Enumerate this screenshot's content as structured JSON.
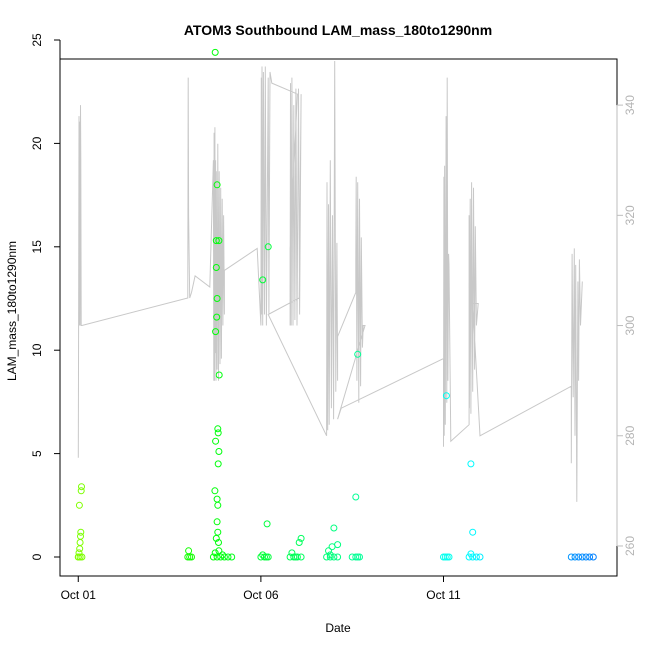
{
  "chart_data": {
    "type": "scatter",
    "title": "ATOM3 Southbound LAM_mass_180to1290nm",
    "xlabel": "Date",
    "ylabel": "LAM_mass_180to1290nm",
    "x_range_days": [
      0.5,
      15.75
    ],
    "ylim": [
      0,
      25
    ],
    "y_ticks": [
      0,
      5,
      10,
      15,
      20,
      25
    ],
    "x_ticks": [
      {
        "x": 1,
        "label": "Oct 01"
      },
      {
        "x": 6,
        "label": "Oct 06"
      },
      {
        "x": 11,
        "label": "Oct 11"
      }
    ],
    "y2lim": [
      258,
      350
    ],
    "y2_ticks": [
      260,
      280,
      300,
      320,
      340
    ],
    "y2_color": "#bebebe",
    "grid": false,
    "legend": "none",
    "scatter_series": {
      "marker": "open-circle",
      "color_encoding": "time gradient green to blue",
      "points": [
        [
          1.0,
          0.0
        ],
        [
          1.05,
          0.0
        ],
        [
          1.02,
          0.2
        ],
        [
          1.04,
          0.4
        ],
        [
          1.05,
          0.7
        ],
        [
          1.06,
          1.0
        ],
        [
          1.07,
          1.2
        ],
        [
          1.03,
          2.5
        ],
        [
          1.08,
          3.2
        ],
        [
          1.09,
          3.4
        ],
        [
          1.0,
          0.0
        ],
        [
          1.1,
          0.0
        ],
        [
          4.0,
          0.0
        ],
        [
          4.05,
          0.0
        ],
        [
          4.1,
          0.0
        ],
        [
          4.02,
          0.3
        ],
        [
          4.7,
          0.0
        ],
        [
          4.8,
          0.0
        ],
        [
          4.9,
          0.0
        ],
        [
          5.0,
          0.0
        ],
        [
          5.1,
          0.0
        ],
        [
          5.2,
          0.0
        ],
        [
          4.75,
          0.2
        ],
        [
          4.85,
          0.3
        ],
        [
          4.95,
          0.1
        ],
        [
          4.75,
          24.4
        ],
        [
          4.78,
          15.3
        ],
        [
          4.85,
          15.3
        ],
        [
          4.8,
          18.0
        ],
        [
          4.78,
          14.0
        ],
        [
          4.8,
          12.5
        ],
        [
          4.79,
          11.6
        ],
        [
          4.76,
          10.9
        ],
        [
          4.86,
          8.8
        ],
        [
          4.82,
          6.2
        ],
        [
          4.83,
          6.0
        ],
        [
          4.76,
          5.6
        ],
        [
          4.85,
          5.1
        ],
        [
          4.83,
          4.5
        ],
        [
          4.74,
          3.2
        ],
        [
          4.8,
          2.8
        ],
        [
          4.82,
          2.5
        ],
        [
          4.8,
          1.7
        ],
        [
          4.82,
          1.2
        ],
        [
          4.84,
          0.7
        ],
        [
          4.78,
          0.9
        ],
        [
          6.0,
          0.0
        ],
        [
          6.1,
          0.0
        ],
        [
          6.2,
          0.0
        ],
        [
          6.05,
          0.1
        ],
        [
          6.15,
          0.0
        ],
        [
          6.05,
          13.4
        ],
        [
          6.2,
          15.0
        ],
        [
          6.17,
          1.6
        ],
        [
          6.8,
          0.0
        ],
        [
          6.9,
          0.0
        ],
        [
          7.0,
          0.0
        ],
        [
          7.1,
          0.0
        ],
        [
          6.85,
          0.2
        ],
        [
          6.95,
          0.0
        ],
        [
          7.05,
          0.7
        ],
        [
          7.1,
          0.9
        ],
        [
          7.8,
          0.0
        ],
        [
          7.9,
          0.0
        ],
        [
          8.0,
          0.0
        ],
        [
          8.1,
          0.0
        ],
        [
          7.85,
          0.3
        ],
        [
          7.95,
          0.5
        ],
        [
          8.0,
          1.4
        ],
        [
          8.1,
          0.6
        ],
        [
          7.9,
          0.1
        ],
        [
          8.5,
          0.0
        ],
        [
          8.6,
          0.0
        ],
        [
          8.7,
          0.0
        ],
        [
          8.65,
          0.0
        ],
        [
          8.6,
          2.9
        ],
        [
          8.65,
          9.8
        ],
        [
          11.0,
          0.0
        ],
        [
          11.05,
          0.0
        ],
        [
          11.1,
          0.0
        ],
        [
          11.15,
          0.0
        ],
        [
          11.08,
          7.8
        ],
        [
          11.7,
          0.0
        ],
        [
          11.8,
          0.0
        ],
        [
          11.9,
          0.0
        ],
        [
          12.0,
          0.0
        ],
        [
          11.75,
          0.15
        ],
        [
          11.8,
          1.2
        ],
        [
          11.75,
          4.5
        ],
        [
          14.5,
          0.0
        ],
        [
          14.6,
          0.0
        ],
        [
          14.7,
          0.0
        ],
        [
          14.8,
          0.0
        ],
        [
          14.9,
          0.0
        ],
        [
          15.0,
          0.0
        ],
        [
          15.1,
          0.0
        ]
      ]
    },
    "altitude_series": {
      "color": "#c8c8c8",
      "axis": "right",
      "points": [
        [
          1.0,
          276
        ],
        [
          1.01,
          300
        ],
        [
          1.02,
          338
        ],
        [
          1.03,
          300
        ],
        [
          1.04,
          337
        ],
        [
          1.05,
          300
        ],
        [
          1.06,
          340
        ],
        [
          1.07,
          330
        ],
        [
          1.08,
          300
        ],
        [
          1.1,
          300
        ],
        [
          4.0,
          305
        ],
        [
          4.0,
          307
        ],
        [
          4.01,
          345
        ],
        [
          4.02,
          320
        ],
        [
          4.05,
          305
        ],
        [
          4.1,
          306
        ],
        [
          4.2,
          309
        ],
        [
          4.6,
          307
        ],
        [
          4.7,
          330
        ],
        [
          4.71,
          290
        ],
        [
          4.72,
          335
        ],
        [
          4.73,
          290
        ],
        [
          4.74,
          336
        ],
        [
          4.75,
          295
        ],
        [
          4.76,
          330
        ],
        [
          4.77,
          290
        ],
        [
          4.78,
          328
        ],
        [
          4.8,
          292
        ],
        [
          4.82,
          333
        ],
        [
          4.84,
          290
        ],
        [
          4.86,
          328
        ],
        [
          4.88,
          293
        ],
        [
          4.9,
          325
        ],
        [
          4.92,
          294
        ],
        [
          4.94,
          323
        ],
        [
          4.96,
          300
        ],
        [
          4.98,
          320
        ],
        [
          5.0,
          302
        ],
        [
          5.0,
          310
        ],
        [
          5.9,
          314
        ],
        [
          6.0,
          300
        ],
        [
          6.01,
          345
        ],
        [
          6.02,
          302
        ],
        [
          6.03,
          347
        ],
        [
          6.05,
          300
        ],
        [
          6.07,
          346
        ],
        [
          6.1,
          302
        ],
        [
          6.12,
          347
        ],
        [
          6.15,
          300
        ],
        [
          6.2,
          345
        ],
        [
          6.22,
          302
        ],
        [
          6.25,
          346
        ],
        [
          6.3,
          344
        ],
        [
          7.0,
          342
        ],
        [
          6.8,
          314
        ],
        [
          6.8,
          300
        ],
        [
          6.81,
          344
        ],
        [
          6.83,
          300
        ],
        [
          6.85,
          345
        ],
        [
          6.88,
          300
        ],
        [
          6.9,
          340
        ],
        [
          6.93,
          301
        ],
        [
          6.96,
          343
        ],
        [
          6.99,
          300
        ],
        [
          7.03,
          343
        ],
        [
          7.06,
          302
        ],
        [
          7.1,
          342
        ],
        [
          7.05,
          305
        ],
        [
          6.2,
          302
        ],
        [
          7.8,
          280
        ],
        [
          7.81,
          326
        ],
        [
          7.83,
          281
        ],
        [
          7.85,
          322
        ],
        [
          7.87,
          282
        ],
        [
          7.9,
          330
        ],
        [
          7.93,
          285
        ],
        [
          7.96,
          320
        ],
        [
          7.99,
          283
        ],
        [
          8.02,
          348
        ],
        [
          8.05,
          288
        ],
        [
          8.08,
          315
        ],
        [
          8.1,
          290
        ],
        [
          8.1,
          298
        ],
        [
          8.6,
          306
        ],
        [
          8.6,
          312
        ],
        [
          8.61,
          327
        ],
        [
          8.63,
          290
        ],
        [
          8.65,
          326
        ],
        [
          8.68,
          286
        ],
        [
          8.7,
          323
        ],
        [
          8.73,
          289
        ],
        [
          8.75,
          316
        ],
        [
          8.78,
          296
        ],
        [
          8.8,
          300
        ],
        [
          8.85,
          300
        ],
        [
          8.1,
          283
        ],
        [
          8.2,
          285
        ],
        [
          11.0,
          294
        ],
        [
          11.0,
          278
        ],
        [
          11.01,
          327
        ],
        [
          11.02,
          280
        ],
        [
          11.03,
          329
        ],
        [
          11.05,
          282
        ],
        [
          11.07,
          338
        ],
        [
          11.09,
          286
        ],
        [
          11.1,
          345
        ],
        [
          11.12,
          290
        ],
        [
          11.14,
          313
        ],
        [
          11.15,
          311
        ],
        [
          11.2,
          279
        ],
        [
          11.7,
          282
        ],
        [
          11.7,
          320
        ],
        [
          11.71,
          285
        ],
        [
          11.73,
          323
        ],
        [
          11.75,
          284
        ],
        [
          11.77,
          326
        ],
        [
          11.8,
          288
        ],
        [
          11.82,
          325
        ],
        [
          11.85,
          292
        ],
        [
          11.87,
          318
        ],
        [
          11.9,
          300
        ],
        [
          11.95,
          304
        ],
        [
          11.8,
          304
        ],
        [
          12.0,
          280
        ],
        [
          14.5,
          289
        ],
        [
          14.5,
          275
        ],
        [
          14.52,
          313
        ],
        [
          14.55,
          287
        ],
        [
          14.58,
          314
        ],
        [
          14.6,
          280
        ],
        [
          14.62,
          311
        ],
        [
          14.65,
          268
        ],
        [
          14.68,
          308
        ],
        [
          14.7,
          290
        ],
        [
          14.72,
          312
        ],
        [
          14.75,
          300
        ],
        [
          14.8,
          308
        ]
      ]
    }
  }
}
